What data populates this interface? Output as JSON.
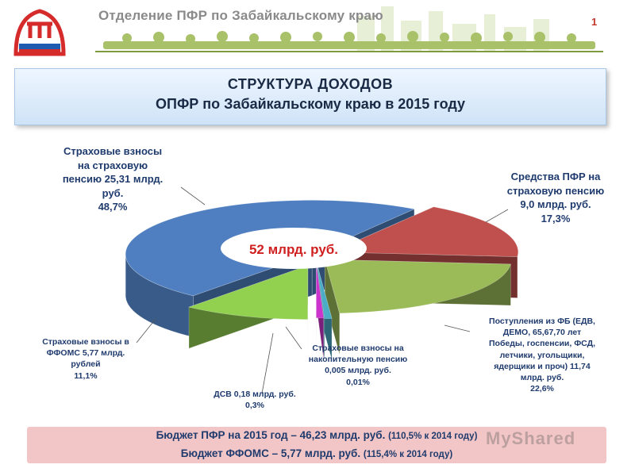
{
  "header": {
    "org_title": "Отделение ПФР по Забайкальскому краю",
    "page_number": "1"
  },
  "title": {
    "line1": "СТРУКТУРА  ДОХОДОВ",
    "line2": "ОПФР по Забайкальскому краю  в 2015 году"
  },
  "chart_data": {
    "type": "pie",
    "center_label": "52 млрд. руб.",
    "slices": [
      {
        "label": "Страховые взносы на страховую пенсию",
        "value": 25.31,
        "percent": 48.7,
        "color": "#4f7fc0",
        "text_lines": [
          "Страховые взносы",
          "на страховую",
          "пенсию 25,31 млрд.",
          "руб.",
          "48,7%"
        ]
      },
      {
        "label": "Средства ПФР на страховую пенсию",
        "value": 9.0,
        "percent": 17.3,
        "color": "#c0504d",
        "text_lines": [
          "Средства ПФР на",
          "страховую пенсию",
          "9,0 млрд. руб.",
          "17,3%"
        ]
      },
      {
        "label": "Поступления из ФБ",
        "value": 11.74,
        "percent": 22.6,
        "color": "#9bbb59",
        "text_lines": [
          "Поступления из ФБ (ЕДВ,",
          "ДЕМО, 65,67,70 лет",
          "Победы, госпенсии, ФСД,",
          "летчики, угольщики,",
          "ядерщики и проч) 11,74",
          "млрд. руб.",
          "22,6%"
        ]
      },
      {
        "label": "Страховые взносы на накопительную пенсию",
        "value": 0.005,
        "percent": 0.01,
        "color": "#4bacc6",
        "text_lines": [
          "Страховые взносы на",
          "накопительную пенсию",
          "0,005 млрд. руб.",
          "0,01%"
        ]
      },
      {
        "label": "ДСВ",
        "value": 0.18,
        "percent": 0.3,
        "color": "#cc33cc",
        "text_lines": [
          "ДСВ 0,18 млрд. руб.",
          "0,3%"
        ]
      },
      {
        "label": "Страховые взносы в ФФОМС",
        "value": 5.77,
        "percent": 11.1,
        "color": "#92d050",
        "text_lines": [
          "Страховые взносы в",
          "ФФОМС  5,77 млрд.",
          "рублей",
          "11,1%"
        ]
      }
    ]
  },
  "footer": {
    "line1_main": "Бюджет ПФР на 2015 год – 46,23 млрд. руб.",
    "line1_note": "(110,5% к 2014 году)",
    "line2_main": "Бюджет ФФОМС – 5,77 млрд. руб.",
    "line2_note": "(115,4% к 2014 году)"
  },
  "watermark": "MyShared"
}
